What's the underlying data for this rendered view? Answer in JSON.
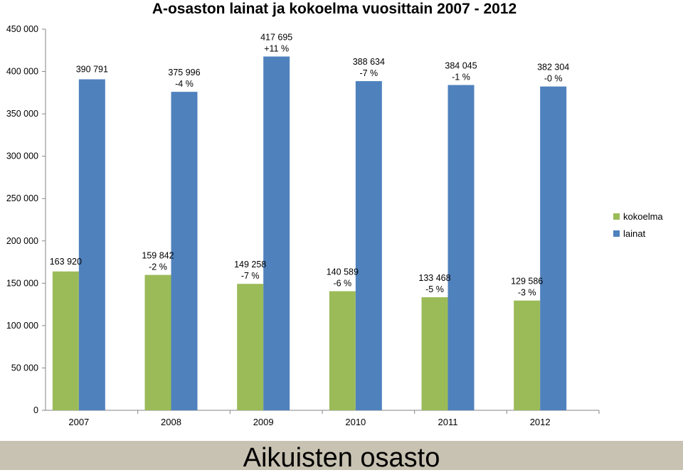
{
  "chart_data": {
    "type": "bar",
    "title": "A-osaston lainat ja kokoelma vuosittain 2007 - 2012",
    "categories": [
      "2007",
      "2008",
      "2009",
      "2010",
      "2011",
      "2012"
    ],
    "series": [
      {
        "name": "kokoelma",
        "color": "#9bbb59",
        "values": [
          163920,
          159842,
          149258,
          140589,
          133468,
          129586
        ],
        "labels": [
          "163 920",
          "159 842",
          "149 258",
          "140 589",
          "133 468",
          "129 586"
        ],
        "changes": [
          "",
          "-2 %",
          "-7 %",
          "-6 %",
          "-5 %",
          "-3 %"
        ]
      },
      {
        "name": "lainat",
        "color": "#4f81bd",
        "values": [
          390791,
          375996,
          417695,
          388634,
          384045,
          382304
        ],
        "labels": [
          "390 791",
          "375 996",
          "417 695",
          "388 634",
          "384 045",
          "382 304"
        ],
        "changes": [
          "",
          "-4 %",
          "+11 %",
          "-7 %",
          "-1 %",
          "-0 %"
        ]
      }
    ],
    "ylim": [
      0,
      450000
    ],
    "ytick_labels": [
      "0",
      "50 000",
      "100 000",
      "150 000",
      "200 000",
      "250 000",
      "300 000",
      "350 000",
      "400 000",
      "450 000"
    ],
    "legend_position": "right",
    "grid": false
  },
  "footer": {
    "title": "Aikuisten osasto"
  }
}
